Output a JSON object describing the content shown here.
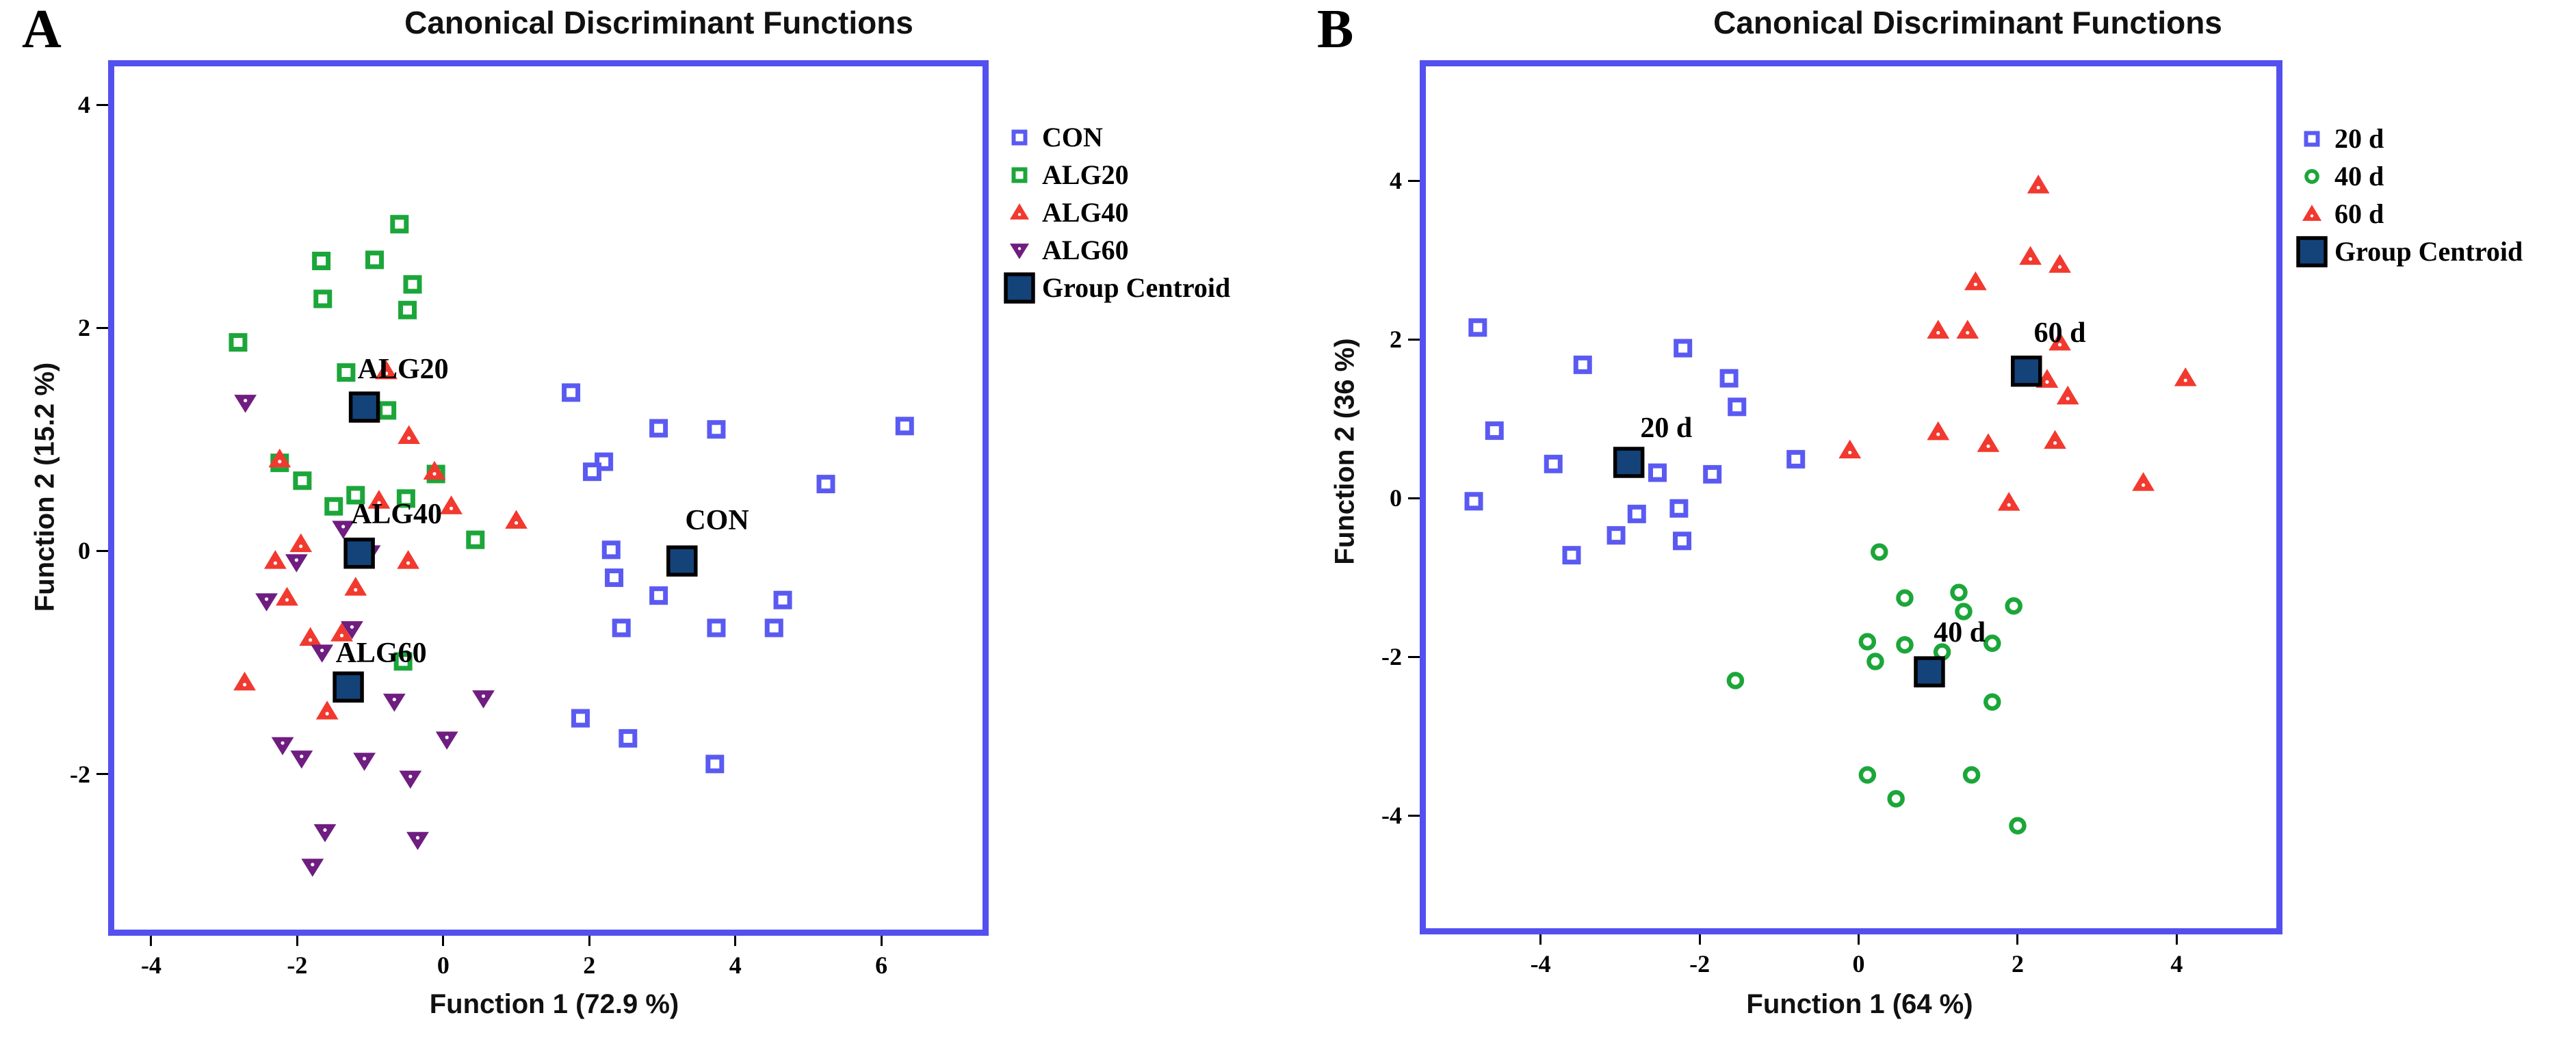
{
  "chart_data": [
    {
      "type": "scatter",
      "panel_label": "A",
      "title": "Canonical Discriminant Functions",
      "xlabel": "Function 1 (72.9 %)",
      "ylabel": "Function 2 (15.2 %)",
      "x_ticks": [
        -4,
        -2,
        0,
        2,
        4,
        6
      ],
      "y_ticks": [
        4,
        2,
        0,
        -2
      ],
      "x_range": [
        -4.59,
        7.47
      ],
      "y_range": [
        -3.45,
        4.4
      ],
      "grid": false,
      "legend_position": "right",
      "centroid_label": "Group Centroid",
      "centroid_color": "#134379",
      "frame_color": "#5450f0",
      "series": [
        {
          "name": "CON",
          "marker": "square-open",
          "color": "#5a5af2",
          "points": [
            [
              1.75,
              1.42
            ],
            [
              2.95,
              1.1
            ],
            [
              3.74,
              1.09
            ],
            [
              6.32,
              1.12
            ],
            [
              2.2,
              0.8
            ],
            [
              2.04,
              0.71
            ],
            [
              5.24,
              0.6
            ],
            [
              2.3,
              0.01
            ],
            [
              2.34,
              -0.24
            ],
            [
              2.95,
              -0.4
            ],
            [
              4.65,
              -0.44
            ],
            [
              2.44,
              -0.69
            ],
            [
              3.74,
              -0.69
            ],
            [
              4.53,
              -0.69
            ],
            [
              1.88,
              -1.5
            ],
            [
              2.53,
              -1.68
            ],
            [
              3.72,
              -1.91
            ]
          ]
        },
        {
          "name": "ALG20",
          "marker": "square-open",
          "color": "#1ca63a",
          "points": [
            [
              -0.6,
              2.93
            ],
            [
              -1.67,
              2.6
            ],
            [
              -0.94,
              2.61
            ],
            [
              -0.42,
              2.39
            ],
            [
              -1.65,
              2.26
            ],
            [
              -0.49,
              2.16
            ],
            [
              -2.81,
              1.87
            ],
            [
              -1.33,
              1.6
            ],
            [
              -0.77,
              1.26
            ],
            [
              -2.24,
              0.79
            ],
            [
              -1.93,
              0.63
            ],
            [
              -0.1,
              0.69
            ],
            [
              -1.2,
              0.5
            ],
            [
              -1.5,
              0.4
            ],
            [
              -0.51,
              0.47
            ],
            [
              0.44,
              0.1
            ],
            [
              -0.55,
              -0.99
            ]
          ]
        },
        {
          "name": "ALG40",
          "marker": "triangle-up",
          "color": "#f2392f",
          "points": [
            [
              -0.78,
              1.61
            ],
            [
              -0.47,
              1.03
            ],
            [
              -2.24,
              0.82
            ],
            [
              -0.12,
              0.71
            ],
            [
              -0.88,
              0.45
            ],
            [
              0.11,
              0.4
            ],
            [
              1.0,
              0.27
            ],
            [
              -1.95,
              0.06
            ],
            [
              -2.3,
              -0.09
            ],
            [
              -0.48,
              -0.09
            ],
            [
              -1.2,
              -0.33
            ],
            [
              -2.14,
              -0.42
            ],
            [
              -1.39,
              -0.74
            ],
            [
              -1.82,
              -0.78
            ],
            [
              -2.72,
              -1.18
            ],
            [
              -1.59,
              -1.44
            ]
          ]
        },
        {
          "name": "ALG60",
          "marker": "triangle-down",
          "color": "#6f1d80",
          "points": [
            [
              -2.71,
              1.33
            ],
            [
              -1.37,
              0.2
            ],
            [
              -1.01,
              -0.02
            ],
            [
              -2.01,
              -0.1
            ],
            [
              -2.42,
              -0.45
            ],
            [
              -1.25,
              -0.7
            ],
            [
              -1.66,
              -0.91
            ],
            [
              -0.67,
              -1.35
            ],
            [
              0.55,
              -1.32
            ],
            [
              0.05,
              -1.69
            ],
            [
              -2.2,
              -1.74
            ],
            [
              -1.94,
              -1.86
            ],
            [
              -1.08,
              -1.88
            ],
            [
              -0.45,
              -2.04
            ],
            [
              -1.62,
              -2.52
            ],
            [
              -0.35,
              -2.59
            ],
            [
              -1.79,
              -2.83
            ]
          ]
        }
      ],
      "centroids": [
        {
          "name": "ALG20",
          "x": -1.08,
          "y": 1.29,
          "label_x": -0.55,
          "label_y": 1.63
        },
        {
          "name": "ALG40",
          "x": -1.15,
          "y": -0.02,
          "label_x": -0.64,
          "label_y": 0.33
        },
        {
          "name": "ALG60",
          "x": -1.3,
          "y": -1.22,
          "label_x": -0.85,
          "label_y": -0.92
        },
        {
          "name": "CON",
          "x": 3.27,
          "y": -0.09,
          "label_x": 3.75,
          "label_y": 0.27
        }
      ]
    },
    {
      "type": "scatter",
      "panel_label": "B",
      "title": "Canonical Discriminant Functions",
      "xlabel": "Function 1 (64 %)",
      "ylabel": "Function 2 (36 %)",
      "x_ticks": [
        -4,
        -2,
        0,
        2,
        4
      ],
      "y_ticks": [
        4,
        2,
        0,
        -2,
        -4
      ],
      "x_range": [
        -5.52,
        5.33
      ],
      "y_range": [
        -5.5,
        5.52
      ],
      "grid": false,
      "legend_position": "right",
      "centroid_label": "Group Centroid",
      "centroid_color": "#134379",
      "frame_color": "#5450f0",
      "series": [
        {
          "name": "20 d",
          "marker": "square-open",
          "color": "#5a5af2",
          "points": [
            [
              -4.79,
              2.15
            ],
            [
              -2.21,
              1.89
            ],
            [
              -3.47,
              1.68
            ],
            [
              -1.63,
              1.51
            ],
            [
              -1.53,
              1.15
            ],
            [
              -4.58,
              0.85
            ],
            [
              -3.84,
              0.43
            ],
            [
              -0.79,
              0.49
            ],
            [
              -2.53,
              0.32
            ],
            [
              -1.84,
              0.3
            ],
            [
              -4.84,
              -0.04
            ],
            [
              -2.79,
              -0.2
            ],
            [
              -2.26,
              -0.13
            ],
            [
              -3.05,
              -0.47
            ],
            [
              -2.22,
              -0.54
            ],
            [
              -3.61,
              -0.72
            ]
          ]
        },
        {
          "name": "40 d",
          "marker": "circle-open",
          "color": "#1ca63a",
          "points": [
            [
              0.26,
              -0.68
            ],
            [
              0.58,
              -1.26
            ],
            [
              1.26,
              -1.19
            ],
            [
              1.32,
              -1.43
            ],
            [
              1.95,
              -1.36
            ],
            [
              0.11,
              -1.81
            ],
            [
              0.58,
              -1.85
            ],
            [
              1.05,
              -1.94
            ],
            [
              1.68,
              -1.83
            ],
            [
              0.21,
              -2.06
            ],
            [
              -1.55,
              -2.3
            ],
            [
              1.68,
              -2.57
            ],
            [
              0.11,
              -3.49
            ],
            [
              1.42,
              -3.49
            ],
            [
              0.47,
              -3.79
            ],
            [
              2.0,
              -4.13
            ]
          ]
        },
        {
          "name": "60 d",
          "marker": "triangle-up",
          "color": "#f2392f",
          "points": [
            [
              2.26,
              3.94
            ],
            [
              2.16,
              3.04
            ],
            [
              2.53,
              2.94
            ],
            [
              1.47,
              2.72
            ],
            [
              1.0,
              2.11
            ],
            [
              1.37,
              2.11
            ],
            [
              2.53,
              1.96
            ],
            [
              2.37,
              1.49
            ],
            [
              2.63,
              1.28
            ],
            [
              4.11,
              1.51
            ],
            [
              1.0,
              0.83
            ],
            [
              1.63,
              0.68
            ],
            [
              2.47,
              0.72
            ],
            [
              -0.11,
              0.6
            ],
            [
              3.58,
              0.19
            ],
            [
              1.89,
              -0.06
            ]
          ]
        }
      ],
      "centroids": [
        {
          "name": "20 d",
          "x": -2.89,
          "y": 0.45,
          "label_x": -2.42,
          "label_y": 0.88
        },
        {
          "name": "40 d",
          "x": 0.89,
          "y": -2.19,
          "label_x": 1.27,
          "label_y": -1.7
        },
        {
          "name": "60 d",
          "x": 2.11,
          "y": 1.6,
          "label_x": 2.53,
          "label_y": 2.08
        }
      ]
    }
  ]
}
